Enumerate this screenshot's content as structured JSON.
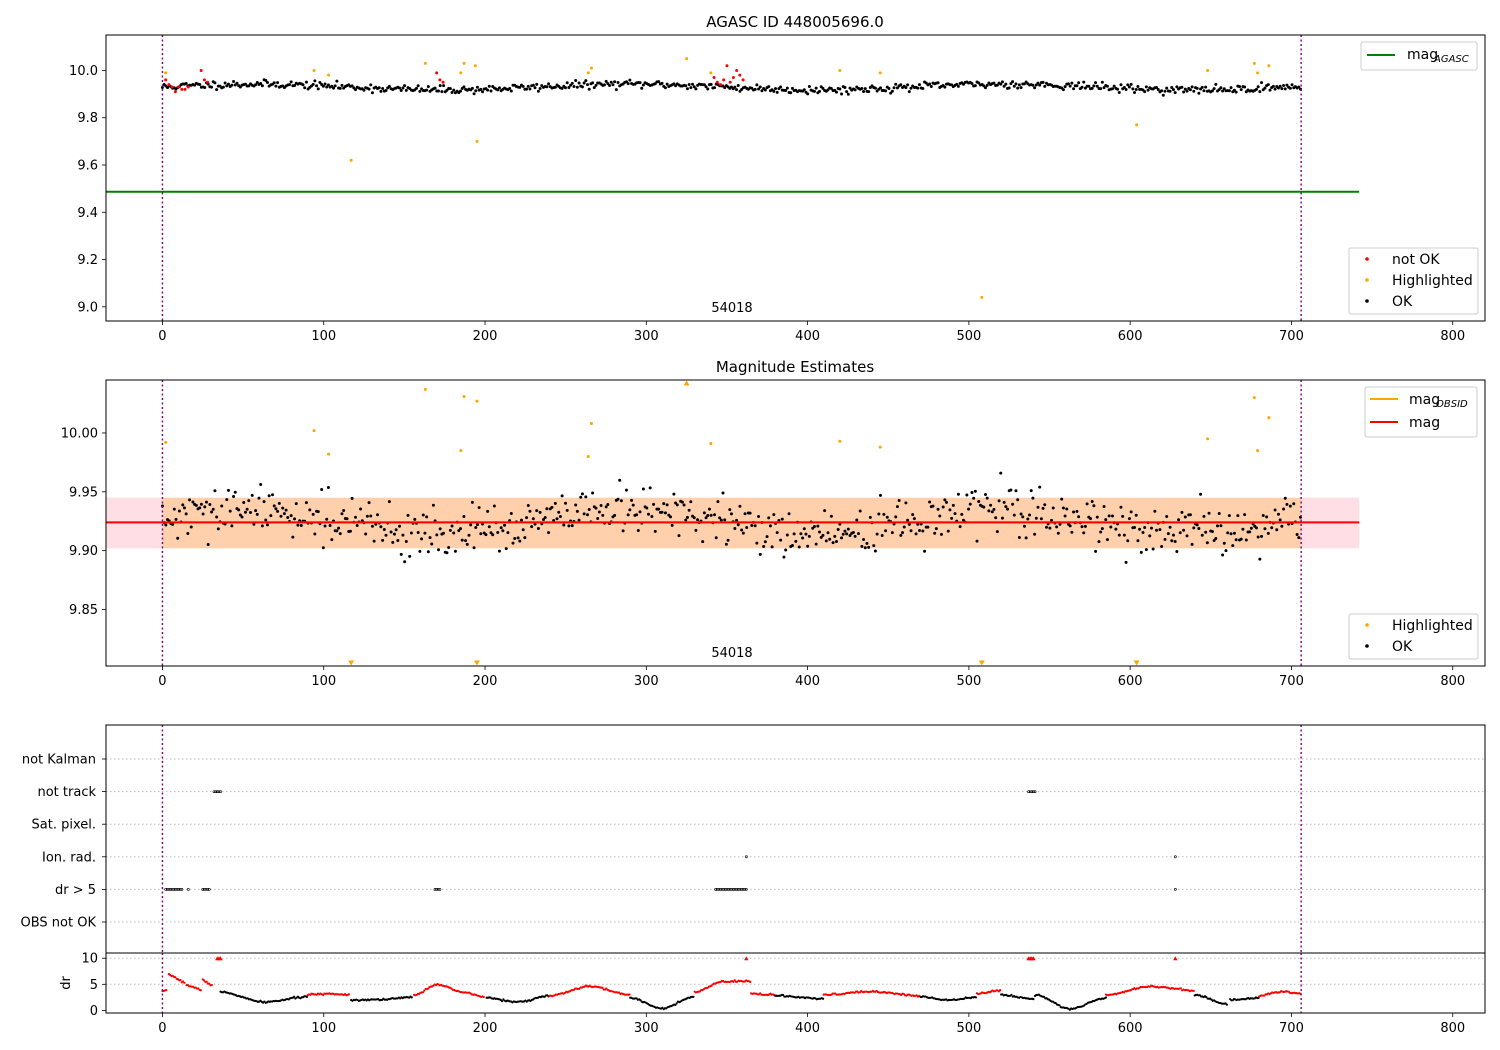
{
  "chart_data": [
    {
      "type": "scatter",
      "title": "AGASC ID 448005696.0",
      "xlim": [
        -35,
        820
      ],
      "ylim": [
        8.94,
        10.15
      ],
      "xticks": [
        0,
        100,
        200,
        300,
        400,
        500,
        600,
        700,
        800
      ],
      "yticks": [
        9.0,
        9.2,
        9.4,
        9.6,
        9.8,
        10.0
      ],
      "ytick_labels": [
        "9.0",
        "9.2",
        "9.4",
        "9.6",
        "9.8",
        "10.0"
      ],
      "annotation": {
        "text": "54018",
        "x": 352
      },
      "vlines": [
        0,
        706
      ],
      "reference_lines": [
        {
          "name": "mag_AGASC",
          "y": 9.487,
          "x_end": 742,
          "color": "#008000"
        }
      ],
      "legend_upper": {
        "position": "upper right",
        "entries": [
          {
            "label": "mag",
            "sub": "AGASC",
            "color": "#008000"
          }
        ]
      },
      "legend_lower": {
        "position": "lower right",
        "entries": [
          {
            "label": "not OK",
            "color": "#ff0000"
          },
          {
            "label": "Highlighted",
            "color": "#ffa500"
          },
          {
            "label": "OK",
            "color": "#000000"
          }
        ]
      },
      "series": [
        {
          "name": "OK",
          "color": "#000000",
          "generator": {
            "x_start": 0,
            "x_end": 706,
            "step": 1.05,
            "base": 9.93,
            "wobble": 0.012,
            "scatter": 0.018,
            "seed": 11
          }
        },
        {
          "name": "not OK",
          "color": "#ff0000",
          "x": [
            2,
            4,
            6,
            8,
            10,
            12,
            14,
            16,
            24,
            26,
            28,
            170,
            172,
            174,
            342,
            344,
            346,
            348,
            350,
            352,
            354,
            356,
            358,
            360
          ],
          "y": [
            9.96,
            9.94,
            9.93,
            9.91,
            9.93,
            9.92,
            9.92,
            9.93,
            10.0,
            9.96,
            9.95,
            9.99,
            9.96,
            9.95,
            9.97,
            9.95,
            9.94,
            9.96,
            10.02,
            9.95,
            9.97,
            10.0,
            9.98,
            9.96
          ]
        },
        {
          "name": "Highlighted",
          "color": "#ffa500",
          "x": [
            2,
            94,
            103,
            117,
            163,
            185,
            187,
            194,
            195,
            264,
            266,
            325,
            340,
            420,
            445,
            508,
            604,
            648,
            677,
            679,
            686
          ],
          "y": [
            9.99,
            10.0,
            9.98,
            9.62,
            10.03,
            9.99,
            10.03,
            10.02,
            9.7,
            9.99,
            10.01,
            10.05,
            9.99,
            10.0,
            9.99,
            9.04,
            9.77,
            10.0,
            10.03,
            9.99,
            10.02
          ]
        }
      ]
    },
    {
      "type": "scatter",
      "title": "Magnitude Estimates",
      "xlim": [
        -35,
        820
      ],
      "ylim": [
        9.802,
        10.045
      ],
      "xticks": [
        0,
        100,
        200,
        300,
        400,
        500,
        600,
        700,
        800
      ],
      "yticks": [
        9.85,
        9.9,
        9.95,
        10.0
      ],
      "ytick_labels": [
        "9.85",
        "9.90",
        "9.95",
        "10.00"
      ],
      "annotation": {
        "text": "54018",
        "x": 352
      },
      "vlines": [
        0,
        706
      ],
      "bands": [
        {
          "y0": 9.902,
          "y1": 9.945,
          "x0": -35,
          "x1": 742,
          "color": "#ffc0cb",
          "opacity": 0.5
        },
        {
          "y0": 9.902,
          "y1": 9.945,
          "x0": 0,
          "x1": 706,
          "color": "#ffa500",
          "opacity": 0.25
        }
      ],
      "reference_lines": [
        {
          "name": "mag_OBSID",
          "y": 9.924,
          "x_start": 0,
          "x_end": 706,
          "color": "#ffa500"
        },
        {
          "name": "mag",
          "y": 9.924,
          "x_start": -35,
          "x_end": 742,
          "color": "#ff0000"
        }
      ],
      "legend_upper": {
        "position": "upper right",
        "entries": [
          {
            "label": "mag",
            "sub": "OBSID",
            "color": "#ffa500"
          },
          {
            "label": "mag",
            "sub": "",
            "color": "#ff0000"
          }
        ]
      },
      "legend_lower": {
        "position": "lower right",
        "entries": [
          {
            "label": "Highlighted",
            "color": "#ffa500"
          },
          {
            "label": "OK",
            "color": "#000000"
          }
        ]
      },
      "series": [
        {
          "name": "OK",
          "color": "#000000",
          "generator": {
            "x_start": 0,
            "x_end": 706,
            "step": 1.05,
            "base": 9.924,
            "wobble": 0.01,
            "scatter": 0.022,
            "seed": 29
          }
        },
        {
          "name": "Highlighted",
          "color": "#ffa500",
          "x": [
            2,
            94,
            103,
            163,
            185,
            187,
            195,
            264,
            266,
            340,
            420,
            445,
            648,
            677,
            679,
            686
          ],
          "y": [
            9.992,
            10.002,
            9.982,
            10.037,
            9.985,
            10.031,
            10.027,
            9.98,
            10.008,
            9.991,
            9.993,
            9.988,
            9.995,
            10.03,
            9.985,
            10.013
          ]
        },
        {
          "name": "Highlighted (out of range)",
          "color": "#ffa500",
          "marker": "triangle",
          "x": [
            117,
            195,
            325,
            508,
            604
          ],
          "y": [
            "below",
            "below",
            "above",
            "below",
            "below"
          ]
        }
      ]
    },
    {
      "type": "scatter",
      "title": "",
      "xlim": [
        -35,
        820
      ],
      "categories": [
        "not Kalman",
        "not track",
        "Sat. pixel.",
        "Ion. rad.",
        "dr > 5",
        "OBS not OK"
      ],
      "vlines": [
        0,
        706
      ],
      "flags": {
        "not track": [
          [
            32,
            36
          ],
          [
            537,
            541
          ]
        ],
        "Ion. rad.": [
          [
            362,
            362
          ],
          [
            628,
            628
          ]
        ],
        "dr > 5": [
          [
            2,
            12
          ],
          [
            16,
            16
          ],
          [
            25,
            29
          ],
          [
            169,
            172
          ],
          [
            343,
            362
          ],
          [
            628,
            628
          ]
        ],
        "not Kalman": [],
        "Sat. pixel.": [],
        "OBS not OK": []
      }
    },
    {
      "type": "scatter",
      "title": "",
      "xlabel": "",
      "ylabel": "dr",
      "xlim": [
        -35,
        820
      ],
      "ylim": [
        -0.5,
        11
      ],
      "xticks": [
        0,
        100,
        200,
        300,
        400,
        500,
        600,
        700,
        800
      ],
      "yticks": [
        0,
        5,
        10
      ],
      "ytick_labels": [
        "0",
        "5",
        "10"
      ],
      "vlines": [
        0,
        706
      ],
      "segments": [
        {
          "x0": 0,
          "x1": 3,
          "color": "#ff0000",
          "shape": [
            3.6,
            3.8
          ]
        },
        {
          "x0": 4,
          "x1": 14,
          "color": "#ff0000",
          "shape": [
            6.8,
            5.4
          ]
        },
        {
          "x0": 15,
          "x1": 24,
          "color": "#ff0000",
          "shape": [
            4.8,
            4.0
          ]
        },
        {
          "x0": 25,
          "x1": 31,
          "color": "#ff0000",
          "shape": [
            5.8,
            4.8
          ]
        },
        {
          "x0": 36,
          "x1": 90,
          "color": "#000000",
          "shape": [
            3.5,
            1.6,
            2.6
          ]
        },
        {
          "x0": 90,
          "x1": 116,
          "color": "#ff0000",
          "shape": [
            3.0,
            3.2,
            3.0
          ]
        },
        {
          "x0": 117,
          "x1": 155,
          "color": "#000000",
          "shape": [
            2.0,
            2.1,
            2.5
          ]
        },
        {
          "x0": 156,
          "x1": 200,
          "color": "#ff0000",
          "shape": [
            3.0,
            5.0,
            3.5,
            2.6
          ]
        },
        {
          "x0": 201,
          "x1": 240,
          "color": "#000000",
          "shape": [
            2.4,
            1.6,
            2.8
          ]
        },
        {
          "x0": 240,
          "x1": 290,
          "color": "#ff0000",
          "shape": [
            2.8,
            4.6,
            3.0
          ]
        },
        {
          "x0": 290,
          "x1": 330,
          "color": "#000000",
          "shape": [
            2.4,
            0.4,
            2.6
          ]
        },
        {
          "x0": 330,
          "x1": 365,
          "color": "#ff0000",
          "shape": [
            3.5,
            5.5,
            5.6
          ]
        },
        {
          "x0": 365,
          "x1": 380,
          "color": "#ff0000",
          "shape": [
            3.2,
            3.0
          ]
        },
        {
          "x0": 380,
          "x1": 410,
          "color": "#000000",
          "shape": [
            2.8,
            2.2
          ]
        },
        {
          "x0": 410,
          "x1": 470,
          "color": "#ff0000",
          "shape": [
            3.0,
            3.6,
            2.8
          ]
        },
        {
          "x0": 470,
          "x1": 505,
          "color": "#000000",
          "shape": [
            2.6,
            2.0,
            2.6
          ]
        },
        {
          "x0": 505,
          "x1": 520,
          "color": "#ff0000",
          "shape": [
            3.2,
            3.8
          ]
        },
        {
          "x0": 520,
          "x1": 540,
          "color": "#000000",
          "shape": [
            3.0,
            2.2
          ]
        },
        {
          "x0": 541,
          "x1": 585,
          "color": "#000000",
          "shape": [
            3.0,
            0.3,
            2.4
          ]
        },
        {
          "x0": 585,
          "x1": 640,
          "color": "#ff0000",
          "shape": [
            3.0,
            4.6,
            3.8
          ]
        },
        {
          "x0": 640,
          "x1": 660,
          "color": "#000000",
          "shape": [
            3.0,
            1.2
          ]
        },
        {
          "x0": 662,
          "x1": 680,
          "color": "#000000",
          "shape": [
            2.0,
            2.4
          ]
        },
        {
          "x0": 680,
          "x1": 706,
          "color": "#ff0000",
          "shape": [
            2.8,
            3.6,
            3.2
          ]
        }
      ],
      "capped_points": {
        "y": 10,
        "color": "#ff0000",
        "x": [
          34,
          35,
          36,
          362,
          537,
          538,
          539,
          540,
          628
        ]
      }
    }
  ]
}
